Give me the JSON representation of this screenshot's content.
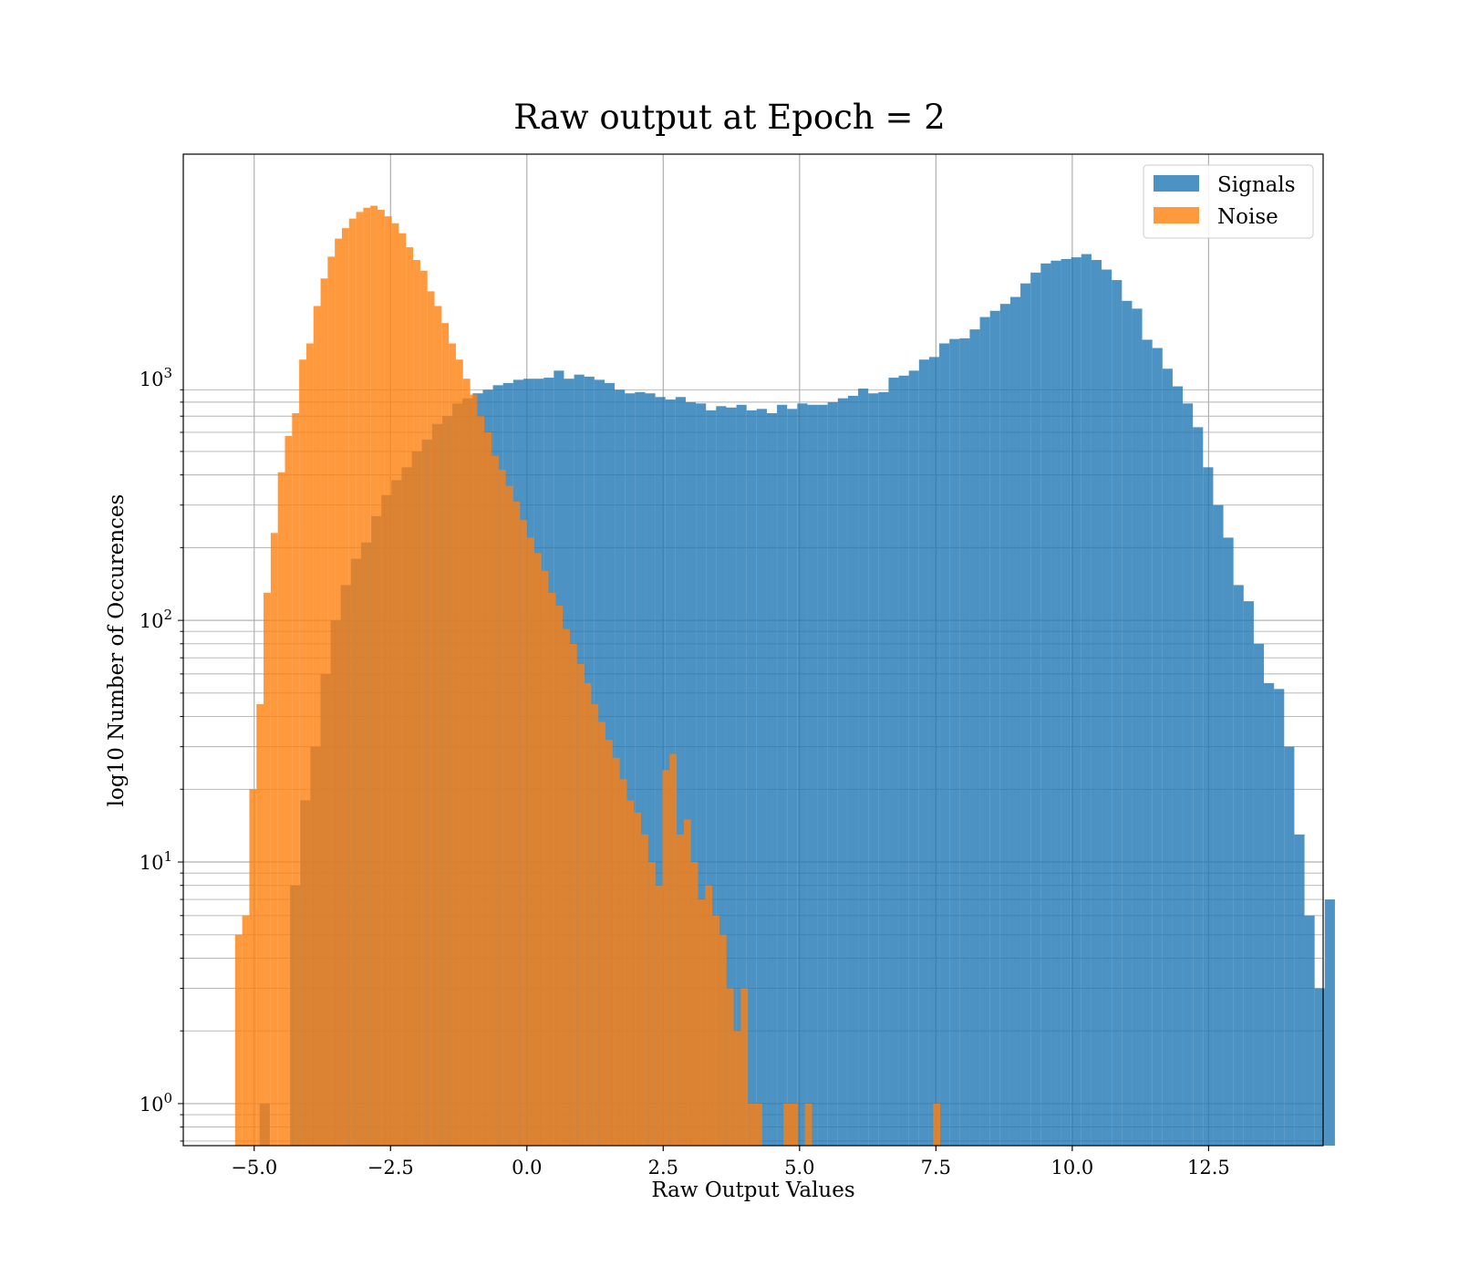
{
  "chart_data": {
    "type": "bar",
    "title": "Raw output at Epoch = 2",
    "xlabel": "Raw Output Values",
    "ylabel": "log10 Number of Occurences",
    "y_scale": "log",
    "xlim": [
      -6.3,
      14.6
    ],
    "ylim": [
      0.67,
      8500
    ],
    "grid": true,
    "legend_position": "top-right",
    "x_ticks": [
      {
        "value": -5.0,
        "label": "−5.0"
      },
      {
        "value": -2.5,
        "label": "−2.5"
      },
      {
        "value": 0.0,
        "label": "0.0"
      },
      {
        "value": 2.5,
        "label": "2.5"
      },
      {
        "value": 5.0,
        "label": "5.0"
      },
      {
        "value": 7.5,
        "label": "7.5"
      },
      {
        "value": 10.0,
        "label": "10.0"
      },
      {
        "value": 12.5,
        "label": "12.5"
      }
    ],
    "y_ticks": [
      {
        "value": 1,
        "base": "10",
        "exp": "0"
      },
      {
        "value": 10,
        "base": "10",
        "exp": "1"
      },
      {
        "value": 100,
        "base": "10",
        "exp": "2"
      },
      {
        "value": 1000,
        "base": "10",
        "exp": "3"
      }
    ],
    "series": [
      {
        "name": "Signals",
        "color": "#1f77b4",
        "opacity": 0.8,
        "x_start": -4.9,
        "bin_width": 0.186,
        "values": [
          1,
          0,
          0,
          8,
          18,
          30,
          60,
          100,
          140,
          180,
          210,
          270,
          330,
          380,
          430,
          500,
          560,
          650,
          700,
          790,
          830,
          870,
          900,
          940,
          960,
          990,
          1000,
          1000,
          1010,
          1080,
          1000,
          1040,
          1020,
          990,
          960,
          900,
          870,
          880,
          870,
          840,
          820,
          840,
          800,
          790,
          740,
          770,
          760,
          780,
          740,
          750,
          720,
          780,
          750,
          790,
          780,
          780,
          800,
          830,
          850,
          910,
          870,
          880,
          1010,
          1030,
          1080,
          1200,
          1230,
          1400,
          1460,
          1470,
          1600,
          1800,
          1910,
          2040,
          2180,
          2480,
          2750,
          3000,
          3080,
          3130,
          3180,
          3280,
          3100,
          2830,
          2560,
          2100,
          1950,
          1450,
          1340,
          1100,
          930,
          790,
          630,
          430,
          300,
          220,
          140,
          120,
          80,
          55,
          52,
          30,
          13,
          6,
          3,
          7
        ]
      },
      {
        "name": "Noise",
        "color": "#ff7f0e",
        "opacity": 0.8,
        "x_start": -5.35,
        "bin_width": 0.1306,
        "values": [
          5,
          6,
          20,
          45,
          130,
          230,
          410,
          580,
          720,
          1200,
          1400,
          2000,
          2600,
          3200,
          3800,
          4200,
          4600,
          4900,
          5100,
          5200,
          5000,
          4700,
          4400,
          4000,
          3500,
          3100,
          2800,
          2300,
          2000,
          1700,
          1400,
          1200,
          1000,
          860,
          700,
          600,
          480,
          420,
          360,
          310,
          260,
          220,
          190,
          160,
          130,
          115,
          92,
          80,
          66,
          55,
          45,
          38,
          32,
          27,
          22,
          18,
          16,
          13,
          10,
          8,
          24,
          28,
          13,
          15,
          10,
          7,
          8,
          6,
          5,
          3,
          2,
          3,
          1,
          1,
          0,
          0,
          0,
          1,
          1,
          0,
          1,
          0,
          0,
          0,
          0,
          0,
          0,
          0,
          0,
          0,
          0,
          0,
          0,
          0,
          0,
          0,
          0,
          0,
          1
        ]
      }
    ]
  }
}
